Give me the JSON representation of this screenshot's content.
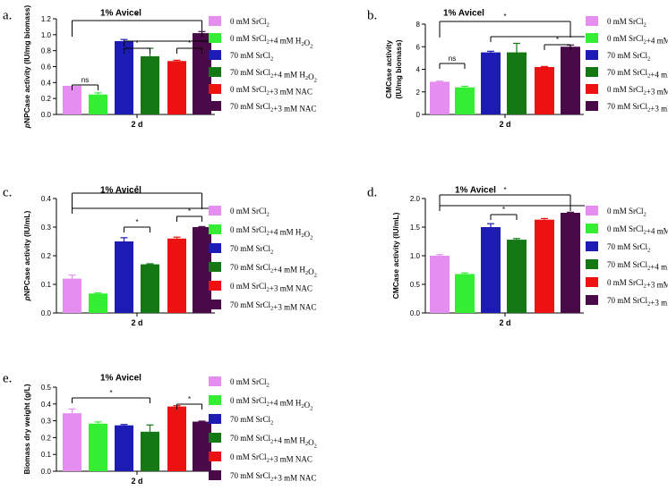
{
  "legend_items": [
    {
      "key": "c0",
      "label": "0 mM SrCl",
      "sub": "2",
      "tail": ""
    },
    {
      "key": "c1",
      "label": "0 mM SrCl",
      "sub": "2",
      "tail": "+4 mM H",
      "sub2": "2",
      "tail2": "O",
      "sub3": "2"
    },
    {
      "key": "c2",
      "label": "70 mM SrCl",
      "sub": "2",
      "tail": ""
    },
    {
      "key": "c3",
      "label": "70 mM SrCl",
      "sub": "2",
      "tail": "+4 mM H",
      "sub2": "2",
      "tail2": "O",
      "sub3": "2"
    },
    {
      "key": "c4",
      "label": "0 mM SrCl",
      "sub": "2",
      "tail": "+3 mM NAC"
    },
    {
      "key": "c5",
      "label": "70 mM SrCl",
      "sub": "2",
      "tail": "+3 mM NAC"
    }
  ],
  "colors": {
    "c0": "#e58ef0",
    "c1": "#33ee33",
    "c2": "#1c1cb4",
    "c3": "#147814",
    "c4": "#ee1111",
    "c5": "#4a0a4a"
  },
  "chart_data": [
    {
      "type": "bar",
      "panel": "a.",
      "title": "1% Avicel",
      "ylabel_italic": "p",
      "ylabel": "NPCase activity (IU/mg biomass)",
      "xlabel": "2 d",
      "ylim": [
        0,
        1.2
      ],
      "yticks": [
        "0.0",
        "0.2",
        "0.4",
        "0.6",
        "0.8",
        "1.0",
        "1.2"
      ],
      "values": [
        0.36,
        0.25,
        0.92,
        0.73,
        0.67,
        1.02
      ],
      "errors": [
        0.0,
        0.02,
        0.02,
        0.1,
        0.01,
        0.02
      ],
      "ns_label": "ns",
      "star": "*"
    },
    {
      "type": "bar",
      "panel": "b.",
      "title": "1% Avicel",
      "ylabel": "CMCase activity",
      "ylabel2": "(IU/mg biomass)",
      "xlabel": "2 d",
      "ylim": [
        0,
        8
      ],
      "yticks": [
        "0",
        "2",
        "4",
        "6",
        "8"
      ],
      "values": [
        2.9,
        2.4,
        5.5,
        5.5,
        4.2,
        6.0
      ],
      "errors": [
        0.05,
        0.1,
        0.1,
        0.8,
        0.05,
        0.15
      ],
      "ns_label": "ns",
      "star": "*"
    },
    {
      "type": "bar",
      "panel": "c.",
      "title": "1% Avicel",
      "ylabel_italic": "p",
      "ylabel": "NPCase activity (IU/mL)",
      "xlabel": "2 d",
      "ylim": [
        0,
        0.4
      ],
      "yticks": [
        "0.0",
        "0.1",
        "0.2",
        "0.3",
        "0.4"
      ],
      "values": [
        0.12,
        0.068,
        0.25,
        0.17,
        0.26,
        0.3
      ],
      "errors": [
        0.012,
        0.002,
        0.013,
        0.002,
        0.005,
        0.002
      ],
      "star": "*"
    },
    {
      "type": "bar",
      "panel": "d.",
      "title": "1% Avicel",
      "ylabel": "CMCase activity (IU/mL)",
      "xlabel": "2 d",
      "ylim": [
        0,
        2.0
      ],
      "yticks": [
        "0.0",
        "0.5",
        "1.0",
        "1.5",
        "2.0"
      ],
      "values": [
        1.0,
        0.68,
        1.5,
        1.28,
        1.63,
        1.75
      ],
      "errors": [
        0.02,
        0.02,
        0.06,
        0.02,
        0.02,
        0.01
      ],
      "star": "*"
    },
    {
      "type": "bar",
      "panel": "e.",
      "title": "1% Avicel",
      "ylabel": "Biomass dry weight (g/L)",
      "xlabel": "2 d",
      "ylim": [
        0,
        0.5
      ],
      "yticks": [
        "0.0",
        "0.1",
        "0.2",
        "0.3",
        "0.4",
        "0.5"
      ],
      "values": [
        0.345,
        0.283,
        0.273,
        0.235,
        0.385,
        0.295
      ],
      "errors": [
        0.025,
        0.01,
        0.005,
        0.04,
        0.005,
        0.003
      ],
      "star": "*"
    }
  ]
}
